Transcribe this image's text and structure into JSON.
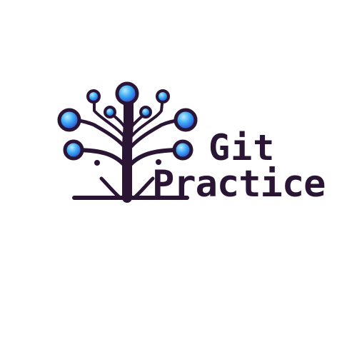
{
  "logo": {
    "icon": "git-tree-icon",
    "title_line1": "Git",
    "title_line2": "Practice"
  },
  "colors": {
    "trunk": "#2a1535",
    "node_light": "#a8e6ff",
    "node_mid": "#3aa8f5",
    "node_dark": "#2a2fb8",
    "text": "#2a1535",
    "background": "#ffffff"
  }
}
